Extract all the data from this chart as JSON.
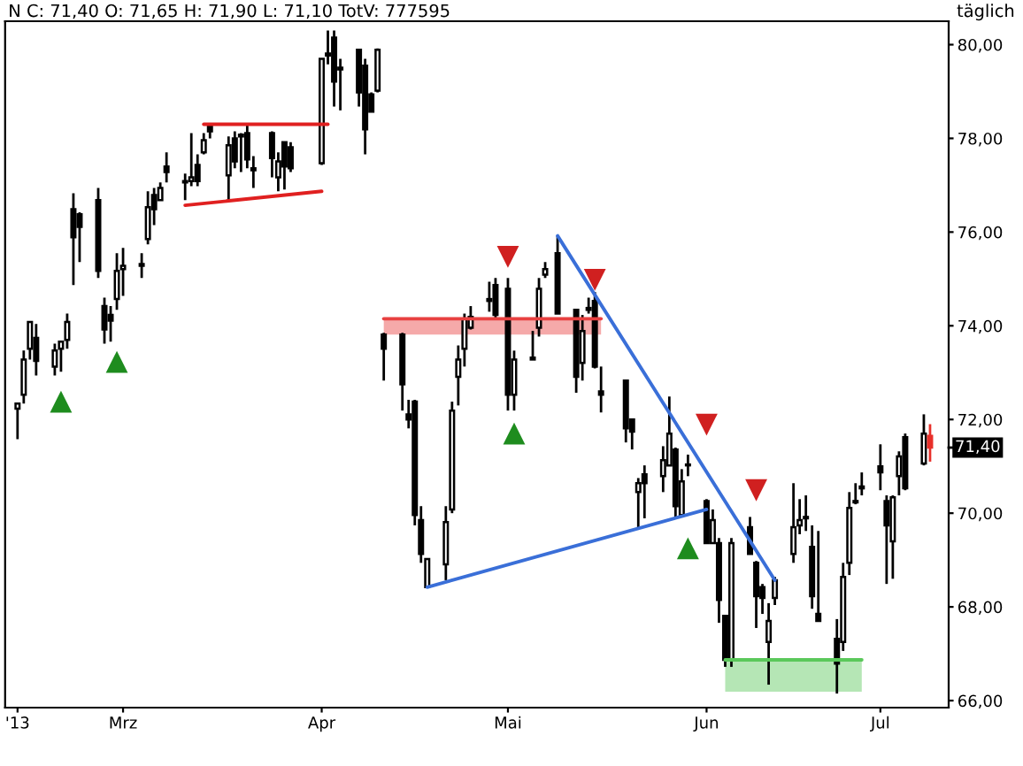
{
  "chart_data": {
    "type": "candlestick",
    "title": "N C: 71,40 O: 71,65 H: 71,90 L: 71,10 TotV: 777595",
    "annotations": [
      "täglich"
    ],
    "x": [
      "2013-02-12",
      "2013-02-13",
      "2013-02-14",
      "2013-02-15",
      "2013-02-18",
      "2013-02-19",
      "2013-02-20",
      "2013-02-21",
      "2013-02-22",
      "2013-02-25",
      "2013-02-26",
      "2013-02-27",
      "2013-02-28",
      "2013-03-01",
      "2013-03-04",
      "2013-03-05",
      "2013-03-06",
      "2013-03-07",
      "2013-03-08",
      "2013-03-11",
      "2013-03-12",
      "2013-03-13",
      "2013-03-14",
      "2013-03-15",
      "2013-03-18",
      "2013-03-19",
      "2013-03-20",
      "2013-03-21",
      "2013-03-22",
      "2013-03-25",
      "2013-03-26",
      "2013-03-27",
      "2013-03-28",
      "2013-04-02",
      "2013-04-03",
      "2013-04-04",
      "2013-04-05",
      "2013-04-08",
      "2013-04-09",
      "2013-04-10",
      "2013-04-11",
      "2013-04-12",
      "2013-04-15",
      "2013-04-16",
      "2013-04-17",
      "2013-04-18",
      "2013-04-19",
      "2013-04-22",
      "2013-04-23",
      "2013-04-24",
      "2013-04-25",
      "2013-04-26",
      "2013-04-29",
      "2013-04-30",
      "2013-05-02",
      "2013-05-03",
      "2013-05-06",
      "2013-05-07",
      "2013-05-08",
      "2013-05-10",
      "2013-05-13",
      "2013-05-14",
      "2013-05-15",
      "2013-05-16",
      "2013-05-17",
      "2013-05-21",
      "2013-05-22",
      "2013-05-23",
      "2013-05-24",
      "2013-05-27",
      "2013-05-28",
      "2013-05-29",
      "2013-05-30",
      "2013-05-31",
      "2013-06-03",
      "2013-06-04",
      "2013-06-05",
      "2013-06-06",
      "2013-06-07",
      "2013-06-10",
      "2013-06-11",
      "2013-06-12",
      "2013-06-13",
      "2013-06-14",
      "2013-06-17",
      "2013-06-18",
      "2013-06-19",
      "2013-06-20",
      "2013-06-21",
      "2013-06-24",
      "2013-06-25",
      "2013-06-26",
      "2013-06-27",
      "2013-06-28",
      "2013-07-01",
      "2013-07-02",
      "2013-07-03",
      "2013-07-04",
      "2013-07-05",
      "2013-07-08",
      "2013-07-09"
    ],
    "ohlc": [
      [
        72.23,
        72.34,
        71.58,
        72.34
      ],
      [
        72.53,
        73.47,
        72.34,
        73.28
      ],
      [
        73.51,
        74.08,
        73.28,
        74.08
      ],
      [
        73.74,
        74.04,
        72.94,
        73.25
      ],
      [
        73.13,
        73.62,
        72.94,
        73.47
      ],
      [
        73.51,
        73.66,
        73.02,
        73.66
      ],
      [
        73.7,
        74.26,
        73.51,
        74.08
      ],
      [
        76.49,
        76.83,
        74.87,
        75.89
      ],
      [
        76.38,
        76.42,
        75.36,
        76.11
      ],
      [
        76.68,
        76.94,
        75.02,
        75.17
      ],
      [
        74.42,
        74.6,
        73.62,
        73.92
      ],
      [
        74.23,
        74.42,
        73.66,
        74.11
      ],
      [
        74.57,
        75.55,
        74.34,
        75.17
      ],
      [
        75.21,
        75.66,
        74.64,
        75.28
      ],
      [
        75.28,
        75.55,
        75.02,
        75.32
      ],
      [
        75.85,
        76.87,
        75.74,
        76.53
      ],
      [
        76.79,
        76.94,
        76.15,
        76.49
      ],
      [
        76.68,
        77.06,
        76.68,
        76.94
      ],
      [
        77.4,
        77.7,
        77.06,
        77.28
      ],
      [
        77.06,
        77.25,
        76.68,
        77.09
      ],
      [
        77.09,
        78.11,
        76.98,
        77.17
      ],
      [
        77.43,
        77.66,
        76.98,
        77.09
      ],
      [
        77.7,
        78.11,
        77.66,
        77.96
      ],
      [
        78.26,
        78.3,
        78.0,
        78.15
      ],
      [
        77.21,
        78.04,
        76.68,
        77.85
      ],
      [
        78.0,
        78.15,
        77.36,
        77.51
      ],
      [
        78.04,
        78.11,
        77.28,
        78.08
      ],
      [
        78.11,
        78.3,
        77.36,
        77.55
      ],
      [
        77.32,
        77.62,
        76.94,
        77.36
      ],
      [
        78.11,
        78.15,
        77.17,
        77.58
      ],
      [
        77.17,
        77.7,
        76.87,
        77.51
      ],
      [
        77.92,
        77.92,
        76.91,
        77.4
      ],
      [
        77.81,
        77.92,
        77.28,
        77.36
      ],
      [
        77.47,
        79.7,
        77.43,
        79.7
      ],
      [
        79.77,
        80.3,
        79.58,
        79.81
      ],
      [
        80.15,
        80.3,
        78.68,
        79.21
      ],
      [
        79.51,
        79.7,
        78.6,
        79.47
      ],
      [
        79.89,
        79.89,
        78.68,
        78.98
      ],
      [
        79.55,
        79.7,
        77.66,
        78.19
      ],
      [
        78.94,
        78.98,
        78.57,
        78.57
      ],
      [
        79.02,
        79.92,
        78.98,
        79.89
      ],
      [
        73.81,
        73.85,
        72.83,
        73.51
      ],
      [
        73.81,
        73.85,
        72.19,
        72.75
      ],
      [
        72.11,
        72.42,
        71.81,
        72.0
      ],
      [
        72.38,
        72.42,
        69.74,
        69.96
      ],
      [
        69.85,
        70.15,
        68.94,
        69.13
      ],
      [
        68.42,
        69.02,
        68.42,
        69.02
      ],
      [
        68.91,
        70.15,
        68.57,
        69.81
      ],
      [
        70.08,
        72.38,
        70.0,
        72.19
      ],
      [
        72.91,
        73.58,
        72.3,
        73.28
      ],
      [
        73.51,
        74.26,
        73.13,
        74.15
      ],
      [
        73.96,
        74.42,
        73.92,
        74.19
      ],
      [
        74.53,
        74.94,
        74.3,
        74.57
      ],
      [
        74.87,
        75.02,
        74.15,
        74.23
      ],
      [
        74.79,
        75.02,
        72.19,
        72.53
      ],
      [
        72.53,
        73.47,
        72.19,
        73.28
      ],
      [
        73.28,
        73.89,
        73.28,
        73.32
      ],
      [
        73.96,
        75.02,
        73.77,
        74.79
      ],
      [
        75.09,
        75.36,
        75.02,
        75.21
      ],
      [
        75.55,
        75.92,
        74.26,
        74.26
      ],
      [
        74.34,
        74.34,
        72.57,
        72.91
      ],
      [
        73.21,
        74.23,
        72.83,
        73.89
      ],
      [
        74.38,
        74.6,
        74.26,
        74.34
      ],
      [
        74.53,
        74.72,
        73.09,
        73.13
      ],
      [
        72.6,
        73.13,
        72.15,
        72.53
      ],
      [
        72.83,
        72.83,
        71.51,
        71.81
      ],
      [
        72.0,
        72.0,
        71.36,
        71.74
      ],
      [
        70.45,
        70.75,
        69.66,
        70.64
      ],
      [
        70.83,
        71.02,
        69.89,
        70.64
      ],
      [
        70.79,
        71.43,
        70.45,
        71.13
      ],
      [
        71.02,
        72.49,
        71.02,
        71.7
      ],
      [
        71.36,
        71.4,
        69.89,
        70.15
      ],
      [
        69.96,
        70.94,
        69.92,
        70.68
      ],
      [
        71.02,
        71.25,
        70.79,
        71.04
      ],
      [
        70.26,
        70.3,
        69.36,
        69.36
      ],
      [
        69.36,
        70.08,
        69.36,
        69.85
      ],
      [
        69.36,
        69.47,
        67.66,
        68.15
      ],
      [
        67.81,
        67.81,
        66.72,
        66.87
      ],
      [
        66.87,
        69.47,
        66.72,
        69.36
      ],
      [
        69.7,
        69.92,
        69.13,
        69.13
      ],
      [
        68.94,
        68.98,
        67.55,
        68.23
      ],
      [
        68.42,
        68.49,
        67.85,
        68.19
      ],
      [
        67.25,
        68.08,
        66.34,
        67.7
      ],
      [
        68.19,
        68.64,
        68.04,
        68.57
      ],
      [
        69.13,
        70.64,
        68.94,
        69.7
      ],
      [
        69.74,
        70.3,
        69.55,
        69.85
      ],
      [
        69.89,
        70.38,
        69.62,
        69.92
      ],
      [
        69.28,
        69.74,
        67.96,
        68.23
      ],
      [
        67.85,
        69.62,
        67.7,
        67.7
      ],
      [
        67.32,
        67.74,
        66.15,
        66.79
      ],
      [
        67.25,
        68.94,
        67.06,
        68.64
      ],
      [
        68.94,
        70.45,
        68.68,
        70.11
      ],
      [
        70.23,
        70.64,
        70.19,
        70.26
      ],
      [
        70.53,
        70.87,
        70.38,
        70.57
      ],
      [
        71.0,
        71.47,
        70.49,
        70.87
      ],
      [
        70.26,
        70.38,
        68.49,
        69.74
      ],
      [
        69.4,
        70.38,
        68.6,
        70.34
      ],
      [
        70.79,
        71.32,
        70.38,
        71.21
      ],
      [
        71.62,
        71.7,
        70.49,
        70.53
      ],
      [
        71.06,
        72.11,
        71.02,
        71.7
      ],
      [
        71.65,
        71.9,
        71.1,
        71.4
      ]
    ],
    "colors": [
      "#ffffff",
      "#ffffff",
      "#ffffff",
      "#000000",
      "#ffffff",
      "#ffffff",
      "#ffffff",
      "#000000",
      "#000000",
      "#000000",
      "#000000",
      "#000000",
      "#ffffff",
      "#ffffff",
      "#ffffff",
      "#ffffff",
      "#000000",
      "#ffffff",
      "#000000",
      "#ffffff",
      "#ffffff",
      "#000000",
      "#ffffff",
      "#000000",
      "#ffffff",
      "#000000",
      "#ffffff",
      "#000000",
      "#ffffff",
      "#000000",
      "#ffffff",
      "#000000",
      "#000000",
      "#ffffff",
      "#ffffff",
      "#000000",
      "#000000",
      "#000000",
      "#000000",
      "#000000",
      "#ffffff",
      "#000000",
      "#000000",
      "#000000",
      "#000000",
      "#000000",
      "#ffffff",
      "#ffffff",
      "#ffffff",
      "#ffffff",
      "#ffffff",
      "#ffffff",
      "#ffffff",
      "#000000",
      "#000000",
      "#ffffff",
      "#ffffff",
      "#ffffff",
      "#ffffff",
      "#000000",
      "#000000",
      "#ffffff",
      "#000000",
      "#000000",
      "#000000",
      "#000000",
      "#000000",
      "#ffffff",
      "#000000",
      "#ffffff",
      "#ffffff",
      "#000000",
      "#ffffff",
      "#ffffff",
      "#000000",
      "#ffffff",
      "#000000",
      "#000000",
      "#ffffff",
      "#000000",
      "#000000",
      "#000000",
      "#ffffff",
      "#ffffff",
      "#ffffff",
      "#ffffff",
      "#ffffff",
      "#000000",
      "#000000",
      "#000000",
      "#ffffff",
      "#ffffff",
      "#ffffff",
      "#ffffff",
      "#000000",
      "#000000",
      "#ffffff",
      "#ffffff",
      "#000000",
      "#ffffff",
      "#e8302a"
    ],
    "series": [
      {
        "type": "line",
        "color": "#e02020",
        "x": [
          "2013-03-14",
          "2013-04-03"
        ],
        "values": [
          78.3,
          78.3
        ]
      },
      {
        "type": "line",
        "color": "#e02020",
        "x": [
          "2013-03-11",
          "2013-04-02"
        ],
        "values": [
          76.57,
          76.87
        ]
      },
      {
        "type": "line",
        "color": "#e84040",
        "x": [
          "2013-04-12",
          "2013-05-17"
        ],
        "values": [
          74.15,
          74.15
        ],
        "lower": [
          73.81,
          73.81
        ],
        "upper": [
          74.15,
          74.15
        ]
      },
      {
        "type": "line",
        "color": "#5ac85a",
        "x": [
          "2013-06-06",
          "2013-06-28"
        ],
        "values": [
          66.87,
          66.87
        ],
        "lower": [
          66.19,
          66.19
        ],
        "upper": [
          66.87,
          66.87
        ]
      },
      {
        "type": "line",
        "color": "#3a6fd8",
        "x": [
          "2013-04-19",
          "2013-06-03"
        ],
        "values": [
          68.42,
          70.08
        ]
      },
      {
        "type": "line",
        "color": "#3a6fd8",
        "x": [
          "2013-05-10",
          "2013-06-14"
        ],
        "values": [
          75.92,
          68.57
        ]
      },
      {
        "type": "scatter",
        "color": "#1e8c1e",
        "marker": "triangle",
        "x": [
          "2013-02-19",
          "2013-02-28",
          "2013-05-03",
          "2013-05-31"
        ],
        "values": [
          72.38,
          73.23,
          71.7,
          69.25
        ]
      },
      {
        "type": "scatter",
        "color": "#d02020",
        "marker": "triangle_down",
        "x": [
          "2013-05-02",
          "2013-05-16",
          "2013-06-03",
          "2013-06-11"
        ],
        "values": [
          75.47,
          74.98,
          71.89,
          70.49
        ]
      }
    ],
    "ref_lines": [
      {
        "axis": "y",
        "value": 71.4,
        "label": "71,40",
        "color": "#000000"
      }
    ],
    "xlim": [
      "2013-02-10",
      "2013-07-12"
    ],
    "xticks": [
      {
        "value": "2013-02-12",
        "label": "'13"
      },
      {
        "value": "2013-03-01",
        "label": "Mrz"
      },
      {
        "value": "2013-04-02",
        "label": "Apr"
      },
      {
        "value": "2013-05-02",
        "label": "Mai"
      },
      {
        "value": "2013-06-03",
        "label": "Jun"
      },
      {
        "value": "2013-07-01",
        "label": "Jul"
      }
    ],
    "ylim": [
      65.85,
      80.5
    ],
    "yticks": [
      {
        "value": 66,
        "label": "66,00"
      },
      {
        "value": 68,
        "label": "68,00"
      },
      {
        "value": 70,
        "label": "70,00"
      },
      {
        "value": 72,
        "label": "72,00"
      },
      {
        "value": 74,
        "label": "74,00"
      },
      {
        "value": 76,
        "label": "76,00"
      },
      {
        "value": 78,
        "label": "78,00"
      },
      {
        "value": 80,
        "label": "80,00"
      }
    ]
  }
}
